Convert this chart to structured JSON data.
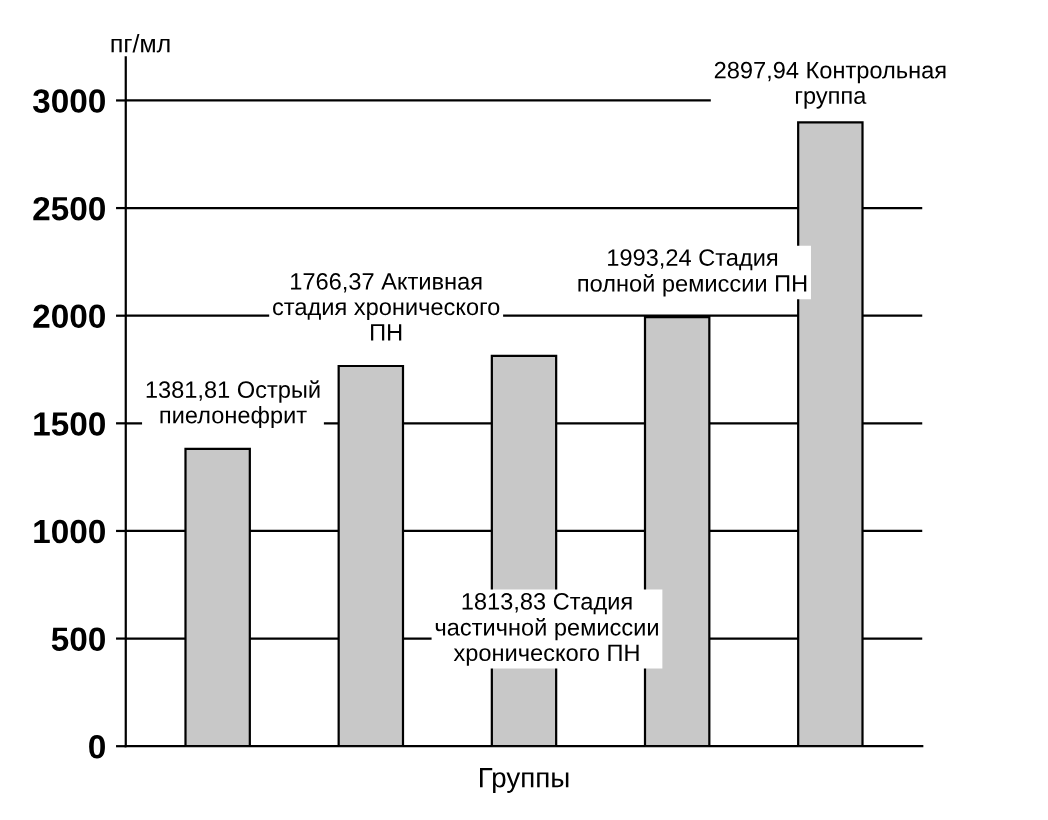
{
  "chart_data": {
    "type": "bar",
    "ylabel": "пг/мл",
    "xlabel": "Группы",
    "categories": [
      null,
      null,
      null,
      null,
      null
    ],
    "values": [
      1381.81,
      1766.37,
      1813.83,
      1993.24,
      2897.94
    ],
    "value_labels": [
      "1381,81 Острый\nпиелонефрит",
      "1766,37 Активная\nстадия хронического\nПН",
      "1813,83 Стадия\nчастичной ремиссии\nхронического ПН",
      "1993,24 Стадия\nполной ремиссии ПН",
      "2897,94 Контрольная\nгруппа"
    ],
    "color": "#c8c8c8",
    "ylim": [
      0,
      3200
    ],
    "yticks": [
      0,
      500,
      1000,
      1500,
      2000,
      2500,
      3000
    ],
    "grid": "y"
  }
}
